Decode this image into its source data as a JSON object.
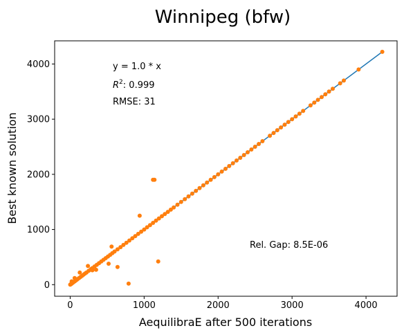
{
  "chart_data": {
    "type": "scatter",
    "title": "Winnipeg (bfw)",
    "xlabel": "AequilibraE after 500 iterations",
    "ylabel": "Best known solution",
    "xlim": [
      -210,
      4420
    ],
    "ylim": [
      -210,
      4420
    ],
    "xticks": [
      0,
      1000,
      2000,
      3000,
      4000
    ],
    "yticks": [
      0,
      1000,
      2000,
      3000,
      4000
    ],
    "xtick_labels": [
      "0",
      "1000",
      "2000",
      "3000",
      "4000"
    ],
    "ytick_labels": [
      "0",
      "1000",
      "2000",
      "3000",
      "4000"
    ],
    "grid": false,
    "annotations": {
      "equation": "y = 1.0 * x",
      "r2_label": "R",
      "r2_sup": "2",
      "r2_value": ":  0.999",
      "rmse": "RMSE: 31",
      "rel_gap": "Rel. Gap: 8.5E-06"
    },
    "series": [
      {
        "type": "line",
        "color": "#1f77b4",
        "x": [
          0,
          4220
        ],
        "y": [
          0,
          4220
        ]
      },
      {
        "type": "scatter",
        "color": "#ff7f0e",
        "x": [
          0,
          5,
          10,
          15,
          20,
          30,
          40,
          50,
          60,
          70,
          80,
          90,
          100,
          120,
          140,
          160,
          180,
          200,
          220,
          250,
          280,
          300,
          330,
          360,
          390,
          420,
          450,
          480,
          510,
          540,
          570,
          600,
          640,
          680,
          720,
          760,
          800,
          840,
          880,
          920,
          960,
          1000,
          1040,
          1080,
          1120,
          1160,
          1200,
          1240,
          1280,
          1320,
          1360,
          1400,
          1450,
          1500,
          1550,
          1600,
          1650,
          1700,
          1750,
          1800,
          1850,
          1900,
          1950,
          2000,
          2050,
          2100,
          2150,
          2200,
          2250,
          2300,
          2350,
          2400,
          2450,
          2500,
          2550,
          2600,
          2700,
          2750,
          2800,
          2850,
          2900,
          2950,
          3000,
          3050,
          3100,
          3150,
          3250,
          3300,
          3350,
          3400,
          3450,
          3500,
          3550,
          3650,
          3700,
          3900,
          4220,
          20,
          60,
          130,
          240,
          300,
          350,
          560,
          520,
          640,
          790,
          940,
          1120,
          1140,
          1190
        ],
        "y": [
          0,
          5,
          10,
          15,
          20,
          30,
          40,
          50,
          60,
          70,
          80,
          90,
          100,
          120,
          140,
          160,
          180,
          200,
          220,
          250,
          280,
          300,
          330,
          360,
          390,
          420,
          450,
          480,
          510,
          540,
          570,
          600,
          640,
          680,
          720,
          760,
          800,
          840,
          880,
          920,
          960,
          1000,
          1040,
          1080,
          1120,
          1160,
          1200,
          1240,
          1280,
          1320,
          1360,
          1400,
          1450,
          1500,
          1550,
          1600,
          1650,
          1700,
          1750,
          1800,
          1850,
          1900,
          1950,
          2000,
          2050,
          2100,
          2150,
          2200,
          2250,
          2300,
          2350,
          2400,
          2450,
          2500,
          2550,
          2600,
          2700,
          2750,
          2800,
          2850,
          2900,
          2950,
          3000,
          3050,
          3100,
          3150,
          3250,
          3300,
          3350,
          3400,
          3450,
          3500,
          3550,
          3650,
          3700,
          3900,
          4220,
          60,
          120,
          220,
          340,
          260,
          270,
          690,
          380,
          320,
          20,
          1250,
          1900,
          1900,
          420
        ]
      }
    ]
  }
}
